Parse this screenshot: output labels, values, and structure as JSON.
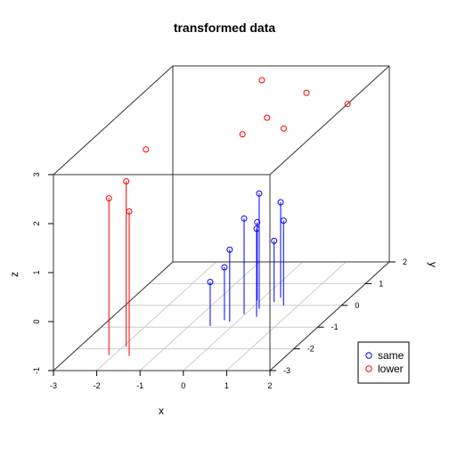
{
  "chart_data": {
    "type": "scatter3d",
    "title": "transformed data",
    "xlabel": "x",
    "ylabel": "y",
    "zlabel": "z",
    "xlim": [
      -3,
      2
    ],
    "ylim": [
      -3,
      2
    ],
    "zlim": [
      -1,
      3
    ],
    "x_ticks": [
      "-3",
      "-2",
      "-1",
      "0",
      "1",
      "2"
    ],
    "y_ticks": [
      "-3",
      "-2",
      "-1",
      "0",
      "1",
      "2"
    ],
    "z_ticks": [
      "-1",
      "0",
      "1",
      "2",
      "3"
    ],
    "grid": "xy-plane",
    "drop_lines": true,
    "legend": {
      "position": "bottom-right",
      "entries": [
        {
          "label": "same",
          "color": "#0000ff",
          "marker": "open-circle"
        },
        {
          "label": "lower",
          "color": "#ff0000",
          "marker": "open-circle"
        }
      ]
    },
    "series": [
      {
        "name": "same",
        "color": "#0000ff",
        "points": [
          {
            "x": 0.18,
            "y": -0.15,
            "z": 1.35
          },
          {
            "x": -0.03,
            "y": -0.4,
            "z": 0.95
          },
          {
            "x": 0.4,
            "y": 0.35,
            "z": 0.95
          },
          {
            "x": 0.33,
            "y": -0.53,
            "z": 0.8
          },
          {
            "x": -0.07,
            "y": 0.22,
            "z": 0.6
          },
          {
            "x": 0.66,
            "y": 0.0,
            "z": 0.73
          },
          {
            "x": -0.17,
            "y": -0.75,
            "z": 0.47
          },
          {
            "x": 0.36,
            "y": 0.15,
            "z": 0.25
          },
          {
            "x": -0.33,
            "y": -0.68,
            "z": 0.08
          },
          {
            "x": -0.51,
            "y": -0.95,
            "z": -0.1
          }
        ]
      },
      {
        "name": "lower",
        "color": "#ff0000",
        "points": [
          {
            "x": -0.32,
            "y": 0.87,
            "z": 3.21
          },
          {
            "x": 0.82,
            "y": 0.67,
            "z": 3.04
          },
          {
            "x": 1.05,
            "y": -0.7,
            "z": 2.92
          },
          {
            "x": 2.0,
            "y": 0.25,
            "z": 3.0
          },
          {
            "x": 0.22,
            "y": -0.92,
            "z": 2.9
          },
          {
            "x": 0.24,
            "y": 0.07,
            "z": 2.8
          },
          {
            "x": -2.0,
            "y": -0.94,
            "z": 2.6
          },
          {
            "x": -1.92,
            "y": -1.91,
            "z": 2.38
          },
          {
            "x": -2.11,
            "y": -2.29,
            "z": 2.2
          },
          {
            "x": -1.62,
            "y": -2.33,
            "z": 1.95
          }
        ]
      }
    ]
  }
}
